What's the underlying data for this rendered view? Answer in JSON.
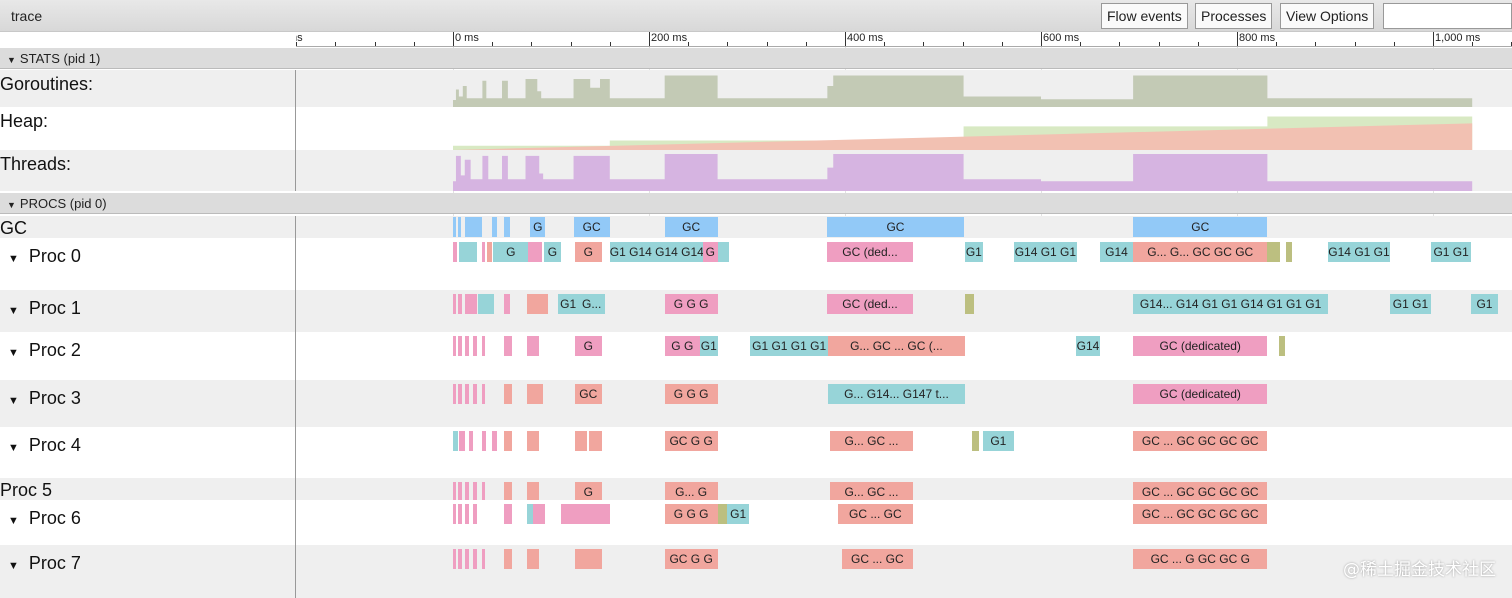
{
  "app": {
    "title": "trace"
  },
  "toolbar": {
    "flow_events": "Flow events",
    "processes": "Processes",
    "view_options": "View Options",
    "search_value": ""
  },
  "ruler": {
    "labels": [
      {
        "ms": -200,
        "text": "ms"
      },
      {
        "ms": 0,
        "text": "0 ms"
      },
      {
        "ms": 200,
        "text": "200 ms"
      },
      {
        "ms": 400,
        "text": "400 ms"
      },
      {
        "ms": 600,
        "text": "600 ms"
      },
      {
        "ms": 800,
        "text": "800 ms"
      },
      {
        "ms": 1000,
        "text": "1,000 ms"
      }
    ],
    "minor_step_ms": 40
  },
  "colors": {
    "teal": "#97d4d8",
    "pink": "#ef9ec1",
    "salmon": "#f1a69e",
    "blue": "#92c9f7",
    "olive": "#bcbf80",
    "goroutines": "#c3cab5",
    "heap_alloc": "#f2c1b2",
    "heap_goal": "#d8e9c3",
    "threads": "#d6b4e1"
  },
  "stats": {
    "header": "STATS (pid 1)",
    "goroutines": {
      "label": "Goroutines:",
      "points": [
        [
          0,
          0.2
        ],
        [
          3,
          0.5
        ],
        [
          6,
          0.3
        ],
        [
          10,
          0.6
        ],
        [
          14,
          0.25
        ],
        [
          30,
          0.75
        ],
        [
          34,
          0.25
        ],
        [
          50,
          0.75
        ],
        [
          56,
          0.25
        ],
        [
          74,
          0.8
        ],
        [
          86,
          0.45
        ],
        [
          90,
          0.25
        ],
        [
          123,
          0.8
        ],
        [
          140,
          0.55
        ],
        [
          150,
          0.8
        ],
        [
          160,
          0.25
        ],
        [
          216,
          0.9
        ],
        [
          270,
          0.25
        ],
        [
          382,
          0.6
        ],
        [
          388,
          0.9
        ],
        [
          521,
          0.3
        ],
        [
          570,
          0.3
        ],
        [
          600,
          0.22
        ],
        [
          694,
          0.9
        ],
        [
          831,
          0.25
        ],
        [
          1040,
          0.25
        ],
        [
          1040,
          0
        ]
      ]
    },
    "heap": {
      "label": "Heap:",
      "alloc_points": [
        [
          0,
          0
        ],
        [
          1040,
          0.62
        ]
      ],
      "goal_steps": [
        [
          0,
          0.1
        ],
        [
          160,
          0.22
        ],
        [
          521,
          0.55
        ],
        [
          831,
          0.78
        ],
        [
          1040,
          0.78
        ]
      ]
    },
    "threads": {
      "label": "Threads:",
      "points": [
        [
          0,
          0.25
        ],
        [
          3,
          0.9
        ],
        [
          8,
          0.4
        ],
        [
          12,
          0.8
        ],
        [
          18,
          0.3
        ],
        [
          30,
          0.9
        ],
        [
          36,
          0.3
        ],
        [
          50,
          0.9
        ],
        [
          56,
          0.3
        ],
        [
          74,
          0.9
        ],
        [
          88,
          0.45
        ],
        [
          92,
          0.3
        ],
        [
          123,
          0.9
        ],
        [
          160,
          0.3
        ],
        [
          216,
          0.95
        ],
        [
          270,
          0.3
        ],
        [
          382,
          0.6
        ],
        [
          388,
          0.95
        ],
        [
          521,
          0.3
        ],
        [
          600,
          0.25
        ],
        [
          694,
          0.95
        ],
        [
          831,
          0.25
        ],
        [
          1040,
          0.25
        ],
        [
          1040,
          0
        ]
      ]
    }
  },
  "procs": {
    "header": "PROCS (pid 0)",
    "rows": [
      {
        "label": "GC",
        "expandable": false,
        "slices": [
          [
            0,
            3,
            "blue",
            ""
          ],
          [
            5,
            8,
            "blue",
            ""
          ],
          [
            12,
            30,
            "blue",
            ""
          ],
          [
            40,
            45,
            "blue",
            ""
          ],
          [
            52,
            58,
            "blue",
            ""
          ],
          [
            79,
            94,
            "blue",
            "G"
          ],
          [
            123,
            160,
            "blue",
            "GC"
          ],
          [
            216,
            270,
            "blue",
            "GC"
          ],
          [
            382,
            521,
            "blue",
            "GC"
          ],
          [
            694,
            831,
            "blue",
            "GC"
          ]
        ]
      },
      {
        "label": "Proc 0",
        "expandable": true,
        "slices": [
          [
            0,
            4,
            "pink",
            ""
          ],
          [
            6,
            25,
            "teal",
            ""
          ],
          [
            30,
            33,
            "pink",
            ""
          ],
          [
            35,
            40,
            "salmon",
            ""
          ],
          [
            41,
            77,
            "teal",
            "G"
          ],
          [
            77,
            91,
            "pink",
            ""
          ],
          [
            93,
            110,
            "teal",
            "G"
          ],
          [
            124,
            152,
            "salmon",
            "G"
          ],
          [
            160,
            255,
            "teal",
            "G1 G14 G14 G14"
          ],
          [
            255,
            270,
            "pink",
            "G"
          ],
          [
            270,
            282,
            "teal",
            ""
          ],
          [
            382,
            469,
            "pink",
            "GC (ded..."
          ],
          [
            522,
            541,
            "teal",
            "G1"
          ],
          [
            572,
            637,
            "teal",
            "G14 G1 G1"
          ],
          [
            660,
            694,
            "teal",
            "G14"
          ],
          [
            694,
            831,
            "salmon",
            "G...  G...  GC GC GC"
          ],
          [
            831,
            844,
            "olive",
            ""
          ],
          [
            850,
            856,
            "olive",
            ""
          ],
          [
            893,
            956,
            "teal",
            "G14 G1 G1"
          ],
          [
            998,
            1039,
            "teal",
            "G1 G1"
          ]
        ]
      },
      {
        "label": "Proc 1",
        "expandable": true,
        "slices": [
          [
            0,
            3,
            "pink",
            ""
          ],
          [
            5,
            9,
            "pink",
            ""
          ],
          [
            12,
            25,
            "pink",
            ""
          ],
          [
            25,
            42,
            "teal",
            ""
          ],
          [
            52,
            58,
            "pink",
            ""
          ],
          [
            76,
            97,
            "salmon",
            ""
          ],
          [
            107,
            128,
            "teal",
            "G1"
          ],
          [
            128,
            155,
            "teal",
            "G..."
          ],
          [
            216,
            270,
            "pink",
            "G  G  G"
          ],
          [
            382,
            469,
            "pink",
            "GC (ded..."
          ],
          [
            522,
            532,
            "olive",
            ""
          ],
          [
            694,
            893,
            "teal",
            "G14...  G14  G1  G1  G14  G1  G1  G1"
          ],
          [
            956,
            998,
            "teal",
            "G1  G1"
          ],
          [
            1039,
            1066,
            "teal",
            "G1"
          ]
        ]
      },
      {
        "label": "Proc 2",
        "expandable": true,
        "slices": [
          [
            0,
            3,
            "pink",
            ""
          ],
          [
            5,
            9,
            "pink",
            ""
          ],
          [
            12,
            16,
            "pink",
            ""
          ],
          [
            20,
            25,
            "pink",
            ""
          ],
          [
            30,
            33,
            "pink",
            ""
          ],
          [
            52,
            60,
            "pink",
            ""
          ],
          [
            76,
            88,
            "pink",
            ""
          ],
          [
            124,
            152,
            "pink",
            "G"
          ],
          [
            216,
            252,
            "pink",
            "G  G"
          ],
          [
            252,
            270,
            "teal",
            "G1"
          ],
          [
            303,
            383,
            "teal",
            "G1  G1  G1  G1"
          ],
          [
            383,
            522,
            "salmon",
            "G...   GC ...    GC (..."
          ],
          [
            636,
            660,
            "teal",
            "G14"
          ],
          [
            694,
            831,
            "pink",
            "GC (dedicated)"
          ],
          [
            843,
            849,
            "olive",
            ""
          ]
        ]
      },
      {
        "label": "Proc 3",
        "expandable": true,
        "slices": [
          [
            0,
            3,
            "pink",
            ""
          ],
          [
            5,
            9,
            "pink",
            ""
          ],
          [
            12,
            16,
            "pink",
            ""
          ],
          [
            20,
            25,
            "pink",
            ""
          ],
          [
            30,
            33,
            "pink",
            ""
          ],
          [
            52,
            60,
            "salmon",
            ""
          ],
          [
            76,
            92,
            "salmon",
            ""
          ],
          [
            124,
            152,
            "salmon",
            "GC"
          ],
          [
            216,
            270,
            "salmon",
            "G  G  G"
          ],
          [
            383,
            522,
            "teal",
            "G...   G14...   G147 t..."
          ],
          [
            694,
            831,
            "pink",
            "GC (dedicated)"
          ]
        ]
      },
      {
        "label": "Proc 4",
        "expandable": true,
        "slices": [
          [
            0,
            5,
            "teal",
            ""
          ],
          [
            6,
            12,
            "pink",
            ""
          ],
          [
            16,
            20,
            "pink",
            ""
          ],
          [
            30,
            34,
            "pink",
            ""
          ],
          [
            40,
            45,
            "pink",
            ""
          ],
          [
            52,
            60,
            "salmon",
            ""
          ],
          [
            76,
            88,
            "salmon",
            ""
          ],
          [
            124,
            137,
            "salmon",
            ""
          ],
          [
            139,
            152,
            "salmon",
            ""
          ],
          [
            216,
            270,
            "salmon",
            "GC G  G"
          ],
          [
            385,
            469,
            "salmon",
            "G...   GC ..."
          ],
          [
            530,
            537,
            "olive",
            ""
          ],
          [
            541,
            572,
            "teal",
            "G1"
          ],
          [
            694,
            831,
            "salmon",
            "GC ...  GC  GC GC GC"
          ]
        ]
      },
      {
        "label": "Proc 5",
        "expandable": false,
        "slices": [
          [
            0,
            3,
            "pink",
            ""
          ],
          [
            5,
            9,
            "pink",
            ""
          ],
          [
            12,
            16,
            "pink",
            ""
          ],
          [
            20,
            25,
            "pink",
            ""
          ],
          [
            30,
            33,
            "pink",
            ""
          ],
          [
            52,
            60,
            "salmon",
            ""
          ],
          [
            76,
            88,
            "salmon",
            ""
          ],
          [
            124,
            152,
            "salmon",
            "G"
          ],
          [
            216,
            270,
            "salmon",
            "G...    G"
          ],
          [
            385,
            469,
            "salmon",
            "G...   GC ..."
          ],
          [
            694,
            831,
            "salmon",
            "GC ...  GC GC GC GC"
          ]
        ]
      },
      {
        "label": "Proc 6",
        "expandable": true,
        "slices": [
          [
            0,
            3,
            "pink",
            ""
          ],
          [
            5,
            9,
            "pink",
            ""
          ],
          [
            12,
            16,
            "pink",
            ""
          ],
          [
            20,
            25,
            "pink",
            ""
          ],
          [
            52,
            60,
            "pink",
            ""
          ],
          [
            76,
            82,
            "teal",
            ""
          ],
          [
            82,
            94,
            "pink",
            ""
          ],
          [
            110,
            160,
            "pink",
            ""
          ],
          [
            216,
            270,
            "salmon",
            "G  G  G"
          ],
          [
            270,
            280,
            "olive",
            ""
          ],
          [
            280,
            302,
            "teal",
            "G1"
          ],
          [
            393,
            469,
            "salmon",
            "GC ...   GC"
          ],
          [
            694,
            831,
            "salmon",
            "GC ...  GC GC GC GC"
          ]
        ]
      },
      {
        "label": "Proc 7",
        "expandable": true,
        "slices": [
          [
            0,
            3,
            "pink",
            ""
          ],
          [
            5,
            9,
            "pink",
            ""
          ],
          [
            12,
            16,
            "pink",
            ""
          ],
          [
            20,
            25,
            "pink",
            ""
          ],
          [
            30,
            33,
            "pink",
            ""
          ],
          [
            52,
            60,
            "salmon",
            ""
          ],
          [
            76,
            88,
            "salmon",
            ""
          ],
          [
            124,
            152,
            "salmon",
            ""
          ],
          [
            216,
            270,
            "salmon",
            "GC G  G"
          ],
          [
            397,
            469,
            "salmon",
            "GC ...   GC"
          ],
          [
            694,
            831,
            "salmon",
            "GC ...   G  GC GC  G"
          ]
        ]
      }
    ]
  },
  "watermark": "@稀土掘金技术社区"
}
